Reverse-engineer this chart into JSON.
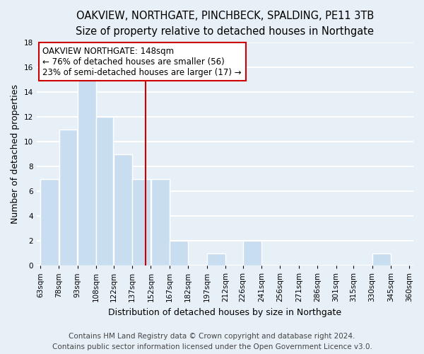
{
  "title": "OAKVIEW, NORTHGATE, PINCHBECK, SPALDING, PE11 3TB",
  "subtitle": "Size of property relative to detached houses in Northgate",
  "xlabel": "Distribution of detached houses by size in Northgate",
  "ylabel": "Number of detached properties",
  "bin_edges": [
    63,
    78,
    93,
    108,
    122,
    137,
    152,
    167,
    182,
    197,
    212,
    226,
    241,
    256,
    271,
    286,
    301,
    315,
    330,
    345,
    360
  ],
  "bar_heights": [
    7,
    11,
    15,
    12,
    9,
    7,
    7,
    2,
    0,
    1,
    0,
    2,
    0,
    0,
    0,
    0,
    0,
    0,
    1,
    0
  ],
  "bar_color": "#c8ddef",
  "bar_edge_color": "#ffffff",
  "property_line_x": 148,
  "ylim": [
    0,
    18
  ],
  "yticks": [
    0,
    2,
    4,
    6,
    8,
    10,
    12,
    14,
    16,
    18
  ],
  "annotation_title": "OAKVIEW NORTHGATE: 148sqm",
  "annotation_line1": "← 76% of detached houses are smaller (56)",
  "annotation_line2": "23% of semi-detached houses are larger (17) →",
  "annotation_box_color": "#ffffff",
  "annotation_box_edge": "#cc0000",
  "vline_color": "#cc0000",
  "footer_line1": "Contains HM Land Registry data © Crown copyright and database right 2024.",
  "footer_line2": "Contains public sector information licensed under the Open Government Licence v3.0.",
  "tick_labels": [
    "63sqm",
    "78sqm",
    "93sqm",
    "108sqm",
    "122sqm",
    "137sqm",
    "152sqm",
    "167sqm",
    "182sqm",
    "197sqm",
    "212sqm",
    "226sqm",
    "241sqm",
    "256sqm",
    "271sqm",
    "286sqm",
    "301sqm",
    "315sqm",
    "330sqm",
    "345sqm",
    "360sqm"
  ],
  "background_color": "#e8f0f7",
  "grid_color": "#ffffff",
  "title_fontsize": 10.5,
  "subtitle_fontsize": 9.5,
  "axis_label_fontsize": 9,
  "tick_fontsize": 7.5,
  "annotation_fontsize": 8.5,
  "footer_fontsize": 7.5
}
